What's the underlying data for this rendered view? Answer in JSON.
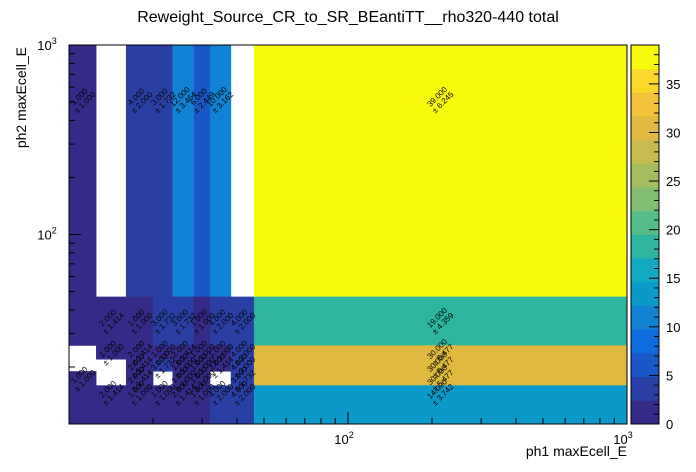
{
  "chart_data": {
    "type": "heatmap",
    "title": "Reweight_Source_CR_to_SR_BEantiTT__rho320-440 total",
    "xlabel": "ph1 maxEcell_E",
    "ylabel": "ph2 maxEcell_E",
    "x_scale": "log",
    "y_scale": "log",
    "xlim": [
      10,
      1000
    ],
    "ylim": [
      10,
      1000
    ],
    "x_ticks": [
      {
        "value": 100,
        "label": "10",
        "exp": "2"
      },
      {
        "value": 1000,
        "label": "10",
        "exp": "3"
      }
    ],
    "y_ticks": [
      {
        "value": 100,
        "label": "10",
        "exp": "2"
      },
      {
        "value": 1000,
        "label": "10",
        "exp": "3"
      }
    ],
    "z_range": [
      0,
      39
    ],
    "colorbar_ticks": [
      "0",
      "5",
      "10",
      "15",
      "20",
      "25",
      "30",
      "35"
    ],
    "colorbar_values": [
      0,
      5,
      10,
      15,
      20,
      25,
      30,
      35
    ],
    "grid": false,
    "x_edges": [
      10,
      12.5,
      16,
      20,
      23.5,
      28,
      32,
      38,
      46,
      1000
    ],
    "y_edges": [
      10,
      13.5,
      16,
      19,
      22,
      26,
      47,
      1000
    ],
    "cells": [
      {
        "xi": 0,
        "yi": 6,
        "value": 1,
        "error": "1.000",
        "label": "1.000"
      },
      {
        "xi": 2,
        "yi": 6,
        "value": 4,
        "error": "2.000",
        "label": "4.000"
      },
      {
        "xi": 3,
        "yi": 6,
        "value": 3,
        "error": "1.732",
        "label": "3.000"
      },
      {
        "xi": 4,
        "yi": 6,
        "value": 12,
        "error": "3.464",
        "label": "12.000"
      },
      {
        "xi": 5,
        "yi": 6,
        "value": 6,
        "error": "2.449",
        "label": "6.000"
      },
      {
        "xi": 6,
        "yi": 6,
        "value": 10,
        "error": "3.162",
        "label": "10.000"
      },
      {
        "xi": 8,
        "yi": 6,
        "value": 39,
        "error": "6.245",
        "label": "39.000"
      },
      {
        "xi": 0,
        "yi": 5,
        "value": 1,
        "error": "",
        "label": ""
      },
      {
        "xi": 1,
        "yi": 5,
        "value": 2,
        "error": "1.414",
        "label": "2.000"
      },
      {
        "xi": 2,
        "yi": 5,
        "value": 1,
        "error": "1.000",
        "label": "1.000"
      },
      {
        "xi": 3,
        "yi": 5,
        "value": 3,
        "error": "1.732",
        "label": "3.000"
      },
      {
        "xi": 4,
        "yi": 5,
        "value": 3,
        "error": "1.732",
        "label": "3.000"
      },
      {
        "xi": 5,
        "yi": 5,
        "value": 1,
        "error": "1.000",
        "label": "1.000"
      },
      {
        "xi": 6,
        "yi": 5,
        "value": 4,
        "error": "2.000",
        "label": "4.000"
      },
      {
        "xi": 7,
        "yi": 5,
        "value": 4,
        "error": "2.000",
        "label": "4.000"
      },
      {
        "xi": 8,
        "yi": 5,
        "value": 19,
        "error": "4.359",
        "label": "19.000"
      },
      {
        "xi": 1,
        "yi": 4,
        "value": 1,
        "error": "1.000",
        "label": "1.000"
      },
      {
        "xi": 2,
        "yi": 4,
        "value": 2,
        "error": "1.414",
        "label": "2.000"
      },
      {
        "xi": 3,
        "yi": 4,
        "value": 1,
        "error": "1.000",
        "label": "1.000"
      },
      {
        "xi": 4,
        "yi": 4,
        "value": 2,
        "error": "1.414",
        "label": "2.000"
      },
      {
        "xi": 5,
        "yi": 4,
        "value": 1,
        "error": "1.000",
        "label": "1.000"
      },
      {
        "xi": 6,
        "yi": 4,
        "value": 1,
        "error": "1.000",
        "label": "1.000"
      },
      {
        "xi": 7,
        "yi": 4,
        "value": 4,
        "error": "2.000",
        "label": "4.000"
      },
      {
        "xi": 8,
        "yi": 4,
        "value": 30,
        "error": "5.477",
        "label": "30.000"
      },
      {
        "xi": 2,
        "yi": 3,
        "value": 2,
        "error": "1.414",
        "label": "2.000"
      },
      {
        "xi": 3,
        "yi": 3,
        "value": 3,
        "error": "1.732",
        "label": "3.000"
      },
      {
        "xi": 4,
        "yi": 3,
        "value": 1,
        "error": "1.000",
        "label": "1.000"
      },
      {
        "xi": 5,
        "yi": 3,
        "value": 1,
        "error": "1.000",
        "label": "1.000"
      },
      {
        "xi": 6,
        "yi": 3,
        "value": 2,
        "error": "1.414",
        "label": "2.000"
      },
      {
        "xi": 7,
        "yi": 3,
        "value": 4,
        "error": "2.000",
        "label": "4.000"
      },
      {
        "xi": 8,
        "yi": 3,
        "value": 30,
        "error": "5.477",
        "label": "30.000"
      },
      {
        "xi": 0,
        "yi": 2,
        "value": 1,
        "error": "1.000",
        "label": "1.000"
      },
      {
        "xi": 2,
        "yi": 2,
        "value": 2,
        "error": "1.414",
        "label": "2.000"
      },
      {
        "xi": 4,
        "yi": 2,
        "value": 1,
        "error": "1.000",
        "label": "1.000"
      },
      {
        "xi": 5,
        "yi": 2,
        "value": 1,
        "error": "1.000",
        "label": "1.000"
      },
      {
        "xi": 7,
        "yi": 2,
        "value": 3,
        "error": "1.732",
        "label": "3.000"
      },
      {
        "xi": 8,
        "yi": 2,
        "value": 30,
        "error": "5.477",
        "label": "30.000"
      },
      {
        "xi": 0,
        "yi": 1,
        "value": 1,
        "error": "",
        "label": ""
      },
      {
        "xi": 1,
        "yi": 1,
        "value": 2,
        "error": "1.414",
        "label": "2.000"
      },
      {
        "xi": 2,
        "yi": 1,
        "value": 1,
        "error": "1.000",
        "label": "1.000"
      },
      {
        "xi": 3,
        "yi": 1,
        "value": 1,
        "error": "1.000",
        "label": "1.000"
      },
      {
        "xi": 4,
        "yi": 1,
        "value": 2,
        "error": "1.414",
        "label": "2.000"
      },
      {
        "xi": 5,
        "yi": 1,
        "value": 1,
        "error": "1.000",
        "label": "1.000"
      },
      {
        "xi": 6,
        "yi": 1,
        "value": 4,
        "error": "2.000",
        "label": "4.000"
      },
      {
        "xi": 7,
        "yi": 1,
        "value": 4,
        "error": "2.000",
        "label": "4.000"
      },
      {
        "xi": 8,
        "yi": 1,
        "value": 14,
        "error": "3.742",
        "label": "14.000"
      },
      {
        "xi": 0,
        "yi": 0,
        "value": 1,
        "error": "",
        "label": ""
      },
      {
        "xi": 1,
        "yi": 0,
        "value": 1,
        "error": "",
        "label": ""
      },
      {
        "xi": 2,
        "yi": 0,
        "value": 1,
        "error": "",
        "label": ""
      },
      {
        "xi": 3,
        "yi": 0,
        "value": 1,
        "error": "",
        "label": ""
      },
      {
        "xi": 4,
        "yi": 0,
        "value": 2,
        "error": "",
        "label": ""
      },
      {
        "xi": 5,
        "yi": 0,
        "value": 1,
        "error": "",
        "label": ""
      },
      {
        "xi": 6,
        "yi": 0,
        "value": 4,
        "error": "",
        "label": ""
      },
      {
        "xi": 7,
        "yi": 0,
        "value": 4,
        "error": "",
        "label": ""
      },
      {
        "xi": 8,
        "yi": 0,
        "value": 14,
        "error": "",
        "label": ""
      }
    ],
    "palette": [
      "#352a87",
      "#2a3fa5",
      "#1a57c7",
      "#0f6cdc",
      "#1283d4",
      "#0b99c9",
      "#12aac0",
      "#2db59f",
      "#55bd88",
      "#83bf73",
      "#a6bd5f",
      "#c7bb4e",
      "#dfba3f",
      "#f2c33a",
      "#f9d82b",
      "#f8fa0d"
    ]
  }
}
